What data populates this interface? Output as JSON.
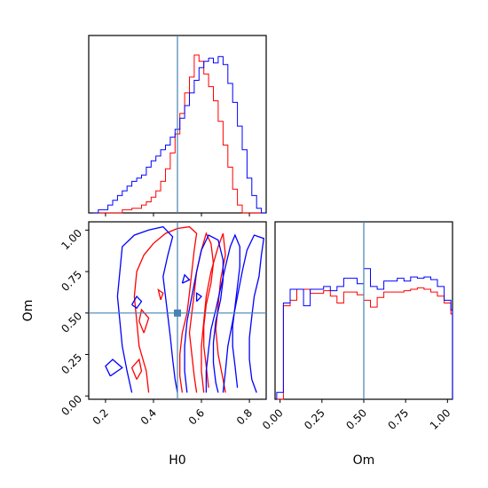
{
  "figure": {
    "type": "corner-plot",
    "parameters": [
      "H0",
      "Om"
    ],
    "truth": {
      "H0": 0.5,
      "Om": 0.5
    },
    "colors": {
      "series_a": "#ff0000",
      "series_b": "#0000ff",
      "truth": "#4682b4",
      "frame": "#000000"
    }
  },
  "chart_data": [
    {
      "id": "H0-marginal",
      "type": "histogram",
      "xlabel": "",
      "ylabel": "",
      "xlim": [
        0.13,
        0.87
      ],
      "ylim": [
        0,
        1.0
      ],
      "truth_x": 0.5,
      "bin_width": 0.02,
      "bin_start": 0.15,
      "series": [
        {
          "color": "#ff0000",
          "values": [
            0,
            0,
            0,
            0,
            0,
            0,
            0.02,
            0.02,
            0.03,
            0.03,
            0.05,
            0.07,
            0.1,
            0.14,
            0.2,
            0.28,
            0.38,
            0.5,
            0.63,
            0.76,
            0.86,
            1.0,
            0.96,
            0.88,
            0.8,
            0.71,
            0.58,
            0.43,
            0.29,
            0.15,
            0.05,
            0,
            0,
            0,
            0,
            0,
            0
          ]
        },
        {
          "color": "#0000ff",
          "values": [
            0,
            0.02,
            0.02,
            0.05,
            0.08,
            0.11,
            0.14,
            0.17,
            0.2,
            0.22,
            0.24,
            0.29,
            0.33,
            0.36,
            0.4,
            0.43,
            0.48,
            0.53,
            0.6,
            0.68,
            0.76,
            0.84,
            0.92,
            0.96,
            0.98,
            0.95,
            0.99,
            0.94,
            0.82,
            0.7,
            0.55,
            0.4,
            0.22,
            0.11,
            0.03,
            0,
            0
          ]
        }
      ]
    },
    {
      "id": "H0-Om-contour",
      "type": "contour",
      "xlabel": "H0",
      "ylabel": "Om",
      "xlim": [
        0.13,
        0.87
      ],
      "ylim": [
        -0.02,
        1.05
      ],
      "xticks": [
        "0.2",
        "0.4",
        "0.6",
        "0.8"
      ],
      "xtick_values": [
        0.2,
        0.4,
        0.6,
        0.8
      ],
      "yticks": [
        "0.00",
        "0.25",
        "0.50",
        "0.75",
        "1.00"
      ],
      "ytick_values": [
        0,
        0.25,
        0.5,
        0.75,
        1.0
      ],
      "truth_point": [
        0.5,
        0.5
      ],
      "series": [
        {
          "color": "#ff0000",
          "contours": [
            [
              [
                0.38,
                0.02
              ],
              [
                0.37,
                0.15
              ],
              [
                0.34,
                0.3
              ],
              [
                0.33,
                0.45
              ],
              [
                0.32,
                0.6
              ],
              [
                0.33,
                0.75
              ],
              [
                0.36,
                0.85
              ],
              [
                0.4,
                0.92
              ],
              [
                0.45,
                0.98
              ],
              [
                0.5,
                1.01
              ],
              [
                0.55,
                1.02
              ],
              [
                0.58,
                0.98
              ],
              [
                0.57,
                0.88
              ],
              [
                0.56,
                0.75
              ],
              [
                0.55,
                0.62
              ],
              [
                0.54,
                0.5
              ],
              [
                0.52,
                0.38
              ],
              [
                0.51,
                0.25
              ],
              [
                0.51,
                0.12
              ],
              [
                0.52,
                0.02
              ]
            ],
            [
              [
                0.58,
                0.02
              ],
              [
                0.57,
                0.12
              ],
              [
                0.56,
                0.25
              ],
              [
                0.55,
                0.38
              ],
              [
                0.56,
                0.5
              ],
              [
                0.57,
                0.62
              ],
              [
                0.58,
                0.75
              ],
              [
                0.6,
                0.88
              ],
              [
                0.62,
                0.98
              ],
              [
                0.64,
                0.92
              ],
              [
                0.65,
                0.8
              ],
              [
                0.64,
                0.68
              ],
              [
                0.62,
                0.55
              ],
              [
                0.61,
                0.42
              ],
              [
                0.61,
                0.3
              ],
              [
                0.62,
                0.18
              ],
              [
                0.63,
                0.05
              ]
            ],
            [
              [
                0.61,
                0.02
              ],
              [
                0.6,
                0.15
              ],
              [
                0.6,
                0.3
              ],
              [
                0.61,
                0.45
              ],
              [
                0.62,
                0.6
              ],
              [
                0.64,
                0.75
              ],
              [
                0.67,
                0.9
              ],
              [
                0.69,
                0.98
              ],
              [
                0.7,
                0.85
              ],
              [
                0.68,
                0.7
              ],
              [
                0.67,
                0.55
              ],
              [
                0.66,
                0.4
              ],
              [
                0.67,
                0.25
              ],
              [
                0.69,
                0.1
              ],
              [
                0.7,
                0.02
              ]
            ],
            [
              [
                0.36,
                0.38
              ],
              [
                0.34,
                0.45
              ],
              [
                0.35,
                0.52
              ],
              [
                0.38,
                0.47
              ],
              [
                0.36,
                0.38
              ]
            ],
            [
              [
                0.43,
                0.58
              ],
              [
                0.44,
                0.62
              ],
              [
                0.42,
                0.64
              ],
              [
                0.43,
                0.58
              ]
            ],
            [
              [
                0.33,
                0.1
              ],
              [
                0.31,
                0.17
              ],
              [
                0.34,
                0.22
              ],
              [
                0.35,
                0.15
              ],
              [
                0.33,
                0.1
              ]
            ]
          ]
        },
        {
          "color": "#0000ff",
          "contours": [
            [
              [
                0.31,
                0.02
              ],
              [
                0.29,
                0.15
              ],
              [
                0.27,
                0.3
              ],
              [
                0.26,
                0.45
              ],
              [
                0.25,
                0.6
              ],
              [
                0.26,
                0.75
              ],
              [
                0.27,
                0.9
              ],
              [
                0.32,
                0.97
              ],
              [
                0.38,
                1.0
              ],
              [
                0.44,
                1.02
              ],
              [
                0.48,
                0.96
              ],
              [
                0.46,
                0.85
              ],
              [
                0.44,
                0.72
              ],
              [
                0.45,
                0.6
              ],
              [
                0.46,
                0.48
              ],
              [
                0.47,
                0.36
              ],
              [
                0.48,
                0.22
              ],
              [
                0.49,
                0.1
              ],
              [
                0.5,
                0.02
              ]
            ],
            [
              [
                0.54,
                0.02
              ],
              [
                0.53,
                0.15
              ],
              [
                0.53,
                0.3
              ],
              [
                0.54,
                0.45
              ],
              [
                0.56,
                0.6
              ],
              [
                0.58,
                0.75
              ],
              [
                0.6,
                0.88
              ],
              [
                0.63,
                0.97
              ],
              [
                0.67,
                0.94
              ],
              [
                0.69,
                0.82
              ],
              [
                0.69,
                0.7
              ],
              [
                0.68,
                0.58
              ],
              [
                0.66,
                0.45
              ],
              [
                0.65,
                0.32
              ],
              [
                0.65,
                0.2
              ],
              [
                0.66,
                0.08
              ],
              [
                0.67,
                0.02
              ]
            ],
            [
              [
                0.62,
                0.02
              ],
              [
                0.62,
                0.15
              ],
              [
                0.63,
                0.28
              ],
              [
                0.64,
                0.4
              ],
              [
                0.66,
                0.52
              ],
              [
                0.68,
                0.65
              ],
              [
                0.7,
                0.78
              ],
              [
                0.72,
                0.9
              ],
              [
                0.74,
                0.97
              ],
              [
                0.76,
                0.9
              ],
              [
                0.76,
                0.78
              ],
              [
                0.75,
                0.66
              ],
              [
                0.74,
                0.54
              ],
              [
                0.73,
                0.42
              ],
              [
                0.73,
                0.3
              ],
              [
                0.74,
                0.18
              ],
              [
                0.75,
                0.05
              ]
            ],
            [
              [
                0.69,
                0.02
              ],
              [
                0.7,
                0.15
              ],
              [
                0.71,
                0.3
              ],
              [
                0.73,
                0.45
              ],
              [
                0.75,
                0.6
              ],
              [
                0.77,
                0.75
              ],
              [
                0.79,
                0.88
              ],
              [
                0.82,
                0.97
              ],
              [
                0.86,
                0.95
              ],
              [
                0.85,
                0.85
              ],
              [
                0.84,
                0.72
              ],
              [
                0.82,
                0.6
              ],
              [
                0.81,
                0.48
              ],
              [
                0.8,
                0.35
              ],
              [
                0.8,
                0.22
              ],
              [
                0.81,
                0.1
              ],
              [
                0.83,
                0.02
              ]
            ],
            [
              [
                0.31,
                0.55
              ],
              [
                0.33,
                0.6
              ],
              [
                0.35,
                0.57
              ],
              [
                0.33,
                0.53
              ],
              [
                0.31,
                0.55
              ]
            ],
            [
              [
                0.22,
                0.12
              ],
              [
                0.2,
                0.18
              ],
              [
                0.23,
                0.22
              ],
              [
                0.27,
                0.17
              ],
              [
                0.22,
                0.12
              ]
            ],
            [
              [
                0.58,
                0.57
              ],
              [
                0.58,
                0.62
              ],
              [
                0.6,
                0.6
              ],
              [
                0.58,
                0.57
              ]
            ],
            [
              [
                0.52,
                0.68
              ],
              [
                0.53,
                0.73
              ],
              [
                0.55,
                0.7
              ],
              [
                0.52,
                0.68
              ]
            ]
          ]
        }
      ]
    },
    {
      "id": "Om-marginal",
      "type": "histogram",
      "xlabel": "Om",
      "ylabel": "",
      "xlim": [
        -0.03,
        1.03
      ],
      "ylim": [
        0,
        1.0
      ],
      "xticks": [
        "0.00",
        "0.25",
        "0.50",
        "0.75",
        "1.00"
      ],
      "xtick_values": [
        0,
        0.25,
        0.5,
        0.75,
        1.0
      ],
      "truth_x": 0.5,
      "bin_width": 0.04,
      "bin_start": -0.02,
      "series": [
        {
          "color": "#ff0000",
          "values": [
            0,
            0.68,
            0.72,
            0.8,
            0.8,
            0.77,
            0.77,
            0.79,
            0.75,
            0.7,
            0.78,
            0.78,
            0.76,
            0.72,
            0.67,
            0.74,
            0.78,
            0.78,
            0.78,
            0.79,
            0.8,
            0.81,
            0.8,
            0.78,
            0.75,
            0.7,
            0.62,
            0.0
          ]
        },
        {
          "color": "#0000ff",
          "values": [
            0.05,
            0.7,
            0.8,
            0.8,
            0.68,
            0.8,
            0.8,
            0.82,
            0.79,
            0.82,
            0.88,
            0.88,
            0.84,
            0.95,
            0.82,
            0.8,
            0.86,
            0.86,
            0.88,
            0.86,
            0.89,
            0.88,
            0.89,
            0.87,
            0.82,
            0.72,
            0.65,
            0.25
          ]
        }
      ]
    }
  ]
}
